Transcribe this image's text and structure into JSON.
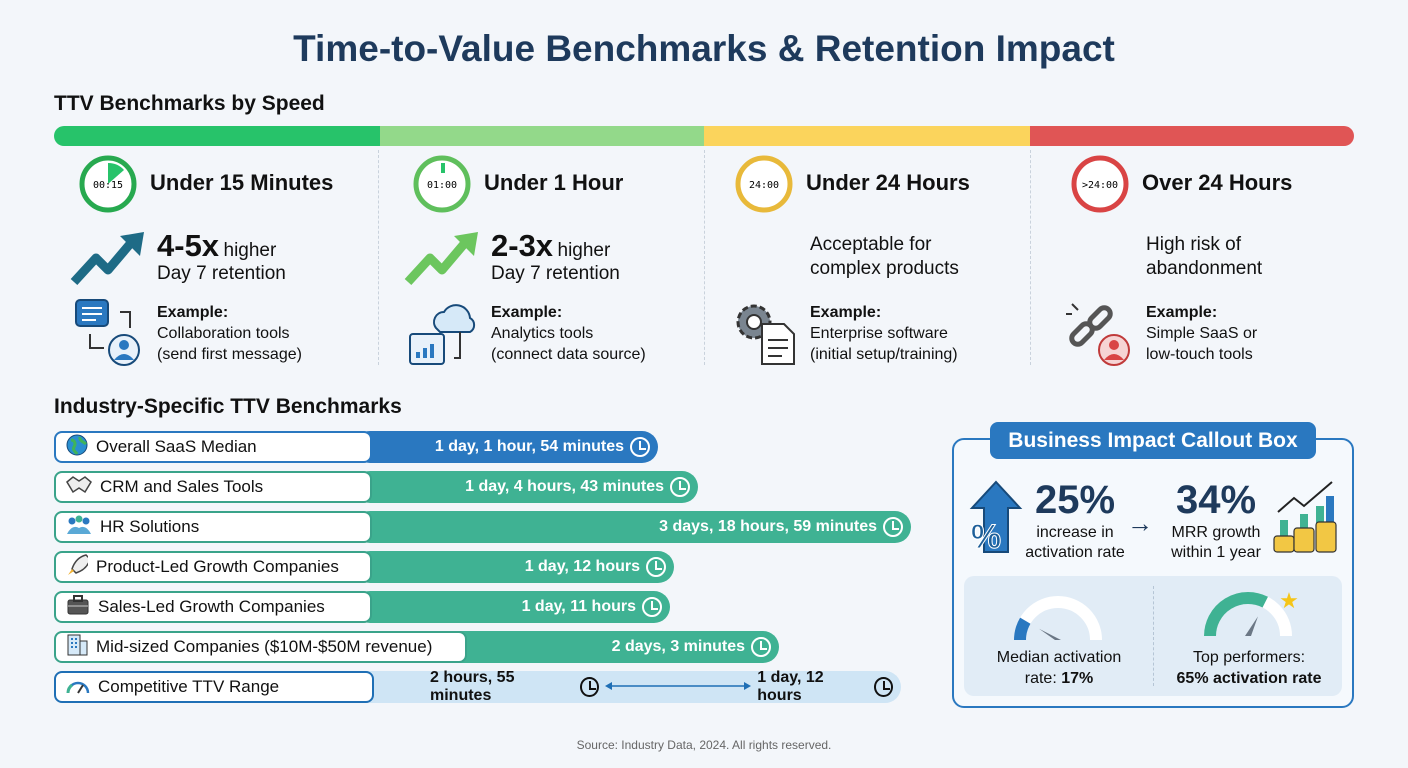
{
  "title": "Time-to-Value Benchmarks & Retention Impact",
  "speed": {
    "heading": "TTV Benchmarks by Speed",
    "colors": [
      "#27c36a",
      "#93d98a",
      "#fbd45c",
      "#e05555"
    ],
    "columns": [
      {
        "title": "Under 15 Minutes",
        "clock": "00:15",
        "stat": "4-5x",
        "stat_suffix": "higher",
        "stat_line2": "Day 7 retention",
        "example_label": "Example:",
        "example_1": "Collaboration tools",
        "example_2": "(send first message)",
        "icon": "chat-user-icon"
      },
      {
        "title": "Under 1 Hour",
        "clock": "01:00",
        "stat": "2-3x",
        "stat_suffix": "higher",
        "stat_line2": "Day 7 retention",
        "example_label": "Example:",
        "example_1": "Analytics tools",
        "example_2": "(connect data source)",
        "icon": "cloud-dashboard-icon"
      },
      {
        "title": "Under 24 Hours",
        "clock": "24:00",
        "desc_1": "Acceptable for",
        "desc_2": "complex products",
        "example_label": "Example:",
        "example_1": "Enterprise software",
        "example_2": "(initial setup/training)",
        "icon": "gear-document-icon"
      },
      {
        "title": "Over 24 Hours",
        "clock": ">24:00",
        "desc_1": "High risk of",
        "desc_2": "abandonment",
        "example_label": "Example:",
        "example_1": "Simple SaaS or",
        "example_2": "low-touch tools",
        "icon": "broken-link-icon"
      }
    ]
  },
  "industry": {
    "heading": "Industry-Specific TTV Benchmarks",
    "rows": [
      {
        "label": "Overall SaaS Median",
        "value": "1 day, 1 hour, 54 minutes",
        "icon": "globe-icon"
      },
      {
        "label": "CRM and Sales Tools",
        "value": "1 day, 4 hours, 43 minutes",
        "icon": "handshake-icon"
      },
      {
        "label": "HR Solutions",
        "value": "3 days, 18 hours, 59 minutes",
        "icon": "people-icon"
      },
      {
        "label": "Product-Led Growth Companies",
        "value": "1 day, 12 hours",
        "icon": "rocket-icon"
      },
      {
        "label": "Sales-Led Growth Companies",
        "value": "1 day, 11 hours",
        "icon": "briefcase-icon"
      },
      {
        "label": "Mid-sized Companies ($10M-$50M revenue)",
        "value": "2 days, 3 minutes",
        "icon": "building-icon"
      },
      {
        "label": "Competitive TTV Range",
        "value_min": "2 hours, 55 minutes",
        "value_max": "1 day, 12 hours",
        "icon": "gauge-icon"
      }
    ]
  },
  "callout": {
    "heading": "Business Impact Callout Box",
    "stat1": "25%",
    "stat1_l1": "increase in",
    "stat1_l2": "activation rate",
    "stat2": "34%",
    "stat2_l1": "MRR growth",
    "stat2_l2": "within 1 year",
    "median_l1": "Median activation",
    "median_l2": "rate:",
    "median_value": "17%",
    "top_l1": "Top performers:",
    "top_value": "65% activation rate",
    "median_fraction": 0.17,
    "top_fraction": 0.65
  },
  "footer": "Source: Industry Data, 2024. All rights reserved."
}
